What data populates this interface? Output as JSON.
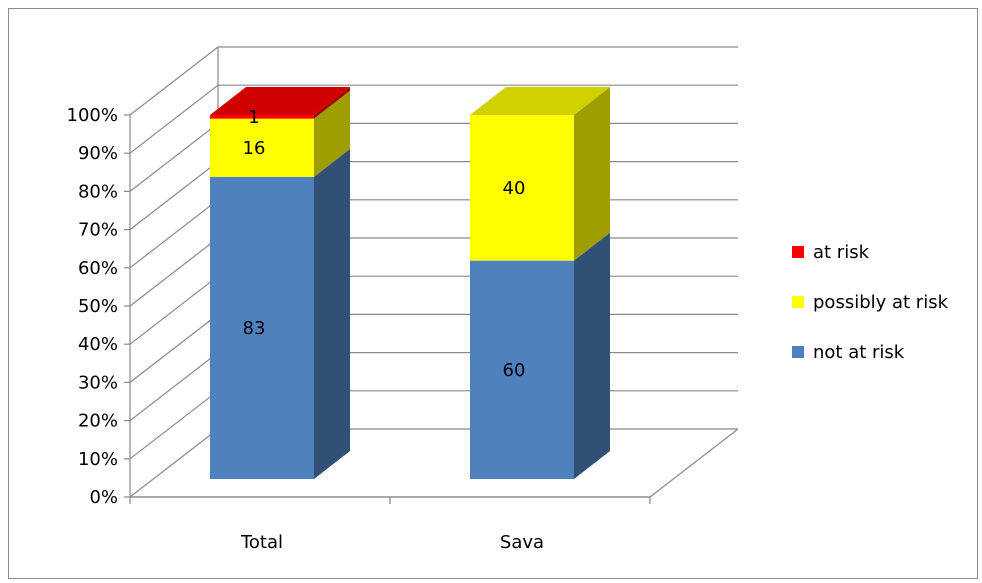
{
  "chart_data": {
    "type": "bar",
    "stacked": true,
    "percent_stacked": true,
    "three_d": true,
    "categories": [
      "Total",
      "Sava"
    ],
    "series": [
      {
        "name": "not at risk",
        "values": [
          83,
          60
        ],
        "color": "#4F81BD",
        "labels": [
          "83",
          "60"
        ]
      },
      {
        "name": "possibly at risk",
        "values": [
          16,
          40
        ],
        "color": "#FFFF00",
        "labels": [
          "16",
          "40"
        ]
      },
      {
        "name": "at risk",
        "values": [
          1,
          0
        ],
        "color": "#FF0000",
        "labels": [
          "1",
          ""
        ]
      }
    ],
    "y_ticks": [
      "0%",
      "10%",
      "20%",
      "30%",
      "40%",
      "50%",
      "60%",
      "70%",
      "80%",
      "90%",
      "100%"
    ],
    "ylim": [
      0,
      100
    ],
    "grid": true,
    "legend": {
      "position": "right",
      "entries": [
        "at risk",
        "possibly at risk",
        "not at risk"
      ]
    },
    "title": "",
    "xlabel": "",
    "ylabel": ""
  }
}
